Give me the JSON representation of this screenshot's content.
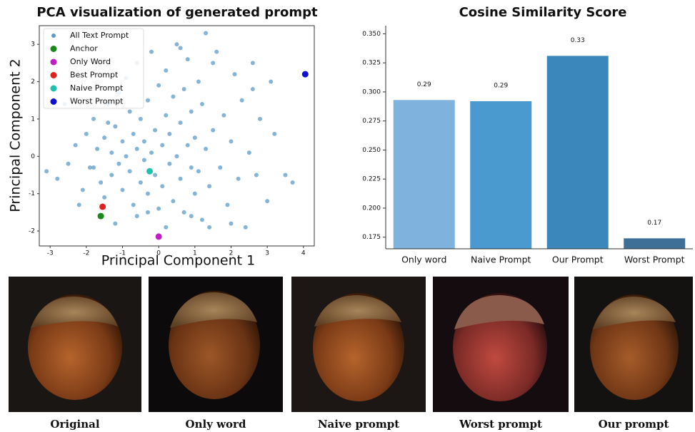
{
  "chart_data": [
    {
      "type": "scatter",
      "title": "PCA visualization of generated prompt",
      "xlabel": "Principal Component 1",
      "ylabel": "Principal Component 2",
      "xlim": [
        -3.3,
        4.3
      ],
      "ylim": [
        -2.4,
        3.5
      ],
      "xticks": [
        -3,
        -2,
        -1,
        0,
        1,
        2,
        3,
        4
      ],
      "yticks": [
        -2,
        -1,
        0,
        1,
        2,
        3
      ],
      "legend": "upper left",
      "series": [
        {
          "name": "All Text Prompt",
          "color": "#5b9bc8",
          "x": [
            -3.1,
            -2.8,
            -2.5,
            -2.3,
            -2.1,
            -2.0,
            -1.9,
            -1.8,
            -1.7,
            -1.6,
            -1.5,
            -1.5,
            -1.4,
            -1.3,
            -1.3,
            -1.2,
            -1.1,
            -1.1,
            -1.0,
            -1.0,
            -0.9,
            -0.9,
            -0.8,
            -0.8,
            -0.7,
            -0.7,
            -0.6,
            -0.6,
            -0.5,
            -0.5,
            -0.4,
            -0.4,
            -0.3,
            -0.3,
            -0.2,
            -0.2,
            -0.1,
            -0.1,
            0.0,
            0.0,
            0.1,
            0.1,
            0.2,
            0.2,
            0.3,
            0.3,
            0.4,
            0.4,
            0.5,
            0.5,
            0.6,
            0.6,
            0.7,
            0.7,
            0.8,
            0.8,
            0.9,
            0.9,
            1.0,
            1.0,
            1.1,
            1.1,
            1.2,
            1.2,
            1.3,
            1.3,
            1.4,
            1.5,
            1.6,
            1.7,
            1.8,
            1.9,
            2.0,
            2.1,
            2.2,
            2.3,
            2.4,
            2.5,
            2.6,
            2.7,
            2.8,
            3.0,
            3.2,
            3.5,
            3.7,
            -2.6,
            -2.2,
            -1.8,
            -1.2,
            -0.6,
            0.2,
            0.9,
            1.5,
            2.0,
            2.6,
            3.1,
            -0.3,
            0.6,
            1.4,
            -1.4
          ],
          "values": [
            -0.4,
            -0.6,
            -0.2,
            0.3,
            -0.9,
            0.6,
            -0.3,
            1.0,
            0.2,
            -0.7,
            0.5,
            -1.1,
            1.4,
            0.1,
            -0.5,
            0.8,
            -0.2,
            1.7,
            0.4,
            -0.9,
            0.0,
            2.1,
            -0.4,
            1.2,
            0.6,
            -1.3,
            0.2,
            2.5,
            -0.7,
            1.0,
            0.4,
            -0.1,
            1.5,
            -1.0,
            0.1,
            2.8,
            -0.5,
            0.7,
            1.9,
            -1.4,
            0.3,
            -0.8,
            1.1,
            2.3,
            -0.2,
            0.6,
            -1.2,
            1.6,
            0.0,
            3.0,
            -0.6,
            0.9,
            1.8,
            -1.5,
            0.3,
            2.6,
            -0.3,
            1.2,
            -1.0,
            0.5,
            2.0,
            -0.4,
            1.4,
            -1.7,
            0.2,
            3.3,
            -0.8,
            0.7,
            2.8,
            -0.3,
            1.1,
            -1.3,
            0.4,
            2.2,
            -0.6,
            1.5,
            -1.9,
            0.1,
            2.5,
            -0.5,
            1.0,
            -1.2,
            0.6,
            -0.5,
            -0.7,
            1.4,
            -1.3,
            -0.3,
            -1.8,
            -1.6,
            -1.9,
            -1.6,
            2.5,
            -1.8,
            1.8,
            2.0,
            -1.5,
            2.9,
            -1.9,
            0.9
          ]
        },
        {
          "name": "Anchor",
          "color": "#1a8a1a",
          "x": [
            -1.6
          ],
          "values": [
            -1.6
          ]
        },
        {
          "name": "Only Word",
          "color": "#c020c0",
          "x": [
            0.0
          ],
          "values": [
            -2.15
          ]
        },
        {
          "name": "Best Prompt",
          "color": "#e02020",
          "x": [
            -1.55
          ],
          "values": [
            -1.35
          ]
        },
        {
          "name": "Naive Prompt",
          "color": "#20c0b0",
          "x": [
            -0.25
          ],
          "values": [
            -0.4
          ]
        },
        {
          "name": "Worst Prompt",
          "color": "#1010d0",
          "x": [
            4.05
          ],
          "values": [
            2.2
          ]
        }
      ]
    },
    {
      "type": "bar",
      "title": "Cosine Similarity Score",
      "categories": [
        "Only word",
        "Naive Prompt",
        "Our Prompt",
        "Worst Prompt"
      ],
      "values": [
        0.293,
        0.292,
        0.331,
        0.174
      ],
      "value_labels": [
        "0.29",
        "0.29",
        "0.33",
        "0.17"
      ],
      "colors": [
        "#7fb3dd",
        "#4a9ad0",
        "#3b86ba",
        "#3e6f97"
      ],
      "ylim": [
        0.165,
        0.357
      ],
      "yticks": [
        0.175,
        {
          "value": 0.2,
          "label": "0.200"
        },
        0.225,
        {
          "value": 0.25,
          "label": "0.250"
        },
        0.275,
        {
          "value": 0.3,
          "label": "0.300"
        },
        0.325,
        {
          "value": 0.35,
          "label": "0.350"
        }
      ]
    }
  ],
  "figure": {
    "captions": [
      "Original",
      "Only word",
      "Naive prompt",
      "Worst prompt",
      "Our prompt"
    ]
  }
}
